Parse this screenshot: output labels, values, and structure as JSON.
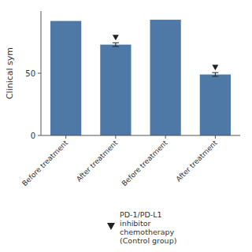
{
  "chart_data": {
    "type": "bar",
    "categories": [
      "Before treatment",
      "After treatment",
      "Before treatment",
      "After treatment"
    ],
    "series": [
      {
        "name": "PD-1/PD-L1\ninhibitor\nchemotherapy\n(Control group)",
        "values": [
          92,
          73,
          93,
          49
        ],
        "errors": [
          null,
          1.5,
          null,
          1.5
        ],
        "marker": "triangle-down"
      }
    ],
    "ylabel": "Clinical sym",
    "ylim": [
      0,
      100
    ],
    "yticks": [
      0,
      50
    ],
    "grid": false,
    "legend": "bottom"
  }
}
